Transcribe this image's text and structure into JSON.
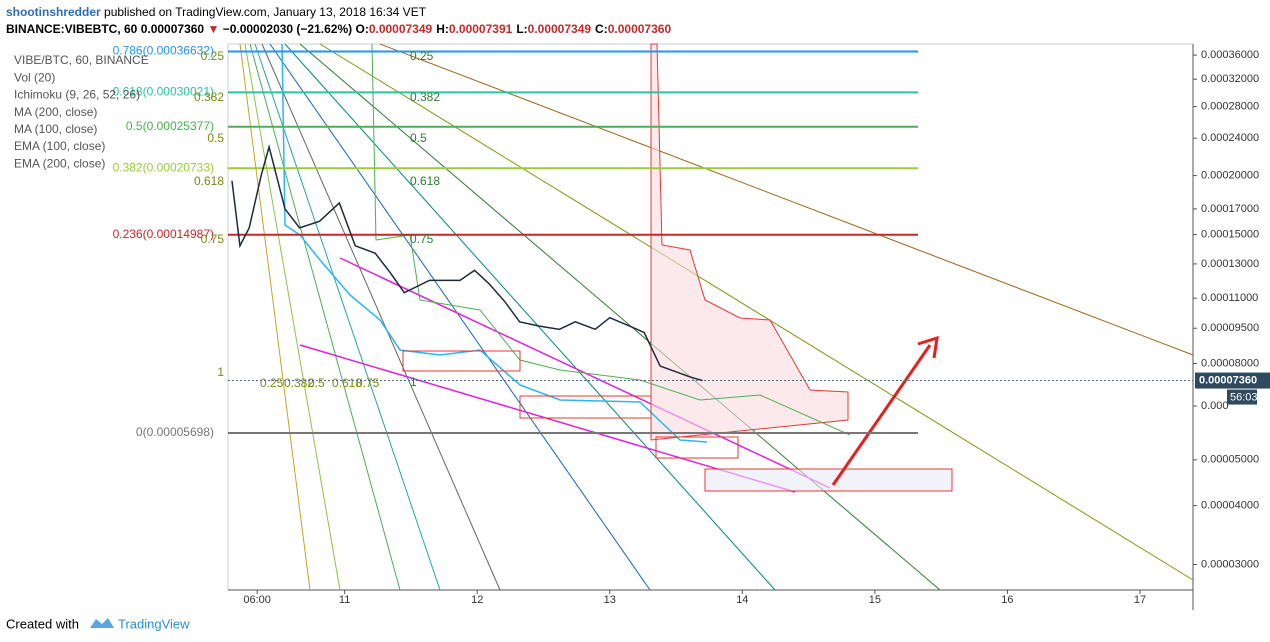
{
  "header": {
    "author": "shootinshredder",
    "published": "published on TradingView.com, January 13, 2018 16:34 VET",
    "symbol": "BINANCE:VIBEBTC, 60",
    "arrow": "▼",
    "change": "−0.00002030 (−21.62%)",
    "ohlc": [
      {
        "key": "O:",
        "value": "0.00007349"
      },
      {
        "key": "H:",
        "value": "0.00007391"
      },
      {
        "key": "L:",
        "value": "0.00007349"
      },
      {
        "key": "C:",
        "value": "0.00007360"
      }
    ]
  },
  "legend": [
    "VIBE/BTC, 60, BINANCE",
    "Vol (20)",
    "Ichimoku (9, 26, 52, 26)",
    "MA (200, close)",
    "MA (100, close)",
    "EMA (100, close)",
    "EMA (200, close)"
  ],
  "chart_data": {
    "type": "line",
    "log_scale": true,
    "color": "#1e2a3a",
    "x": [
      10.15,
      10.21,
      10.28,
      10.37,
      10.43,
      10.55,
      10.66,
      10.81,
      10.96,
      11.08,
      11.23,
      11.34,
      11.45,
      11.64,
      11.87,
      11.98,
      12.09,
      12.21,
      12.32,
      12.47,
      12.62,
      12.74,
      12.89,
      13.0,
      13.15,
      13.26,
      13.38,
      13.49,
      13.6,
      13.7
    ],
    "values": [
      0.000195,
      0.000142,
      0.000155,
      0.0002,
      0.00023,
      0.00017,
      0.000155,
      0.00016,
      0.000175,
      0.000142,
      0.000137,
      0.000125,
      0.000113,
      0.00012,
      0.00012,
      0.000126,
      0.000118,
      0.000108,
      9.8e-05,
      9.6e-05,
      9.45e-05,
      9.8e-05,
      9.45e-05,
      0.0001,
      9.6e-05,
      9.3e-05,
      7.9e-05,
      7.7e-05,
      7.5e-05,
      7.36e-05
    ],
    "xlim": [
      10.12,
      17.4
    ],
    "xticks": [
      {
        "value": 10.34,
        "label": "06:00"
      },
      11,
      12,
      13,
      14,
      15,
      16,
      17
    ],
    "ylim": [
      2.65e-05,
      0.00038
    ],
    "yticks": [
      {
        "value": 0.00036,
        "label": "0.00036000"
      },
      {
        "value": 0.00032,
        "label": "0.00032000"
      },
      {
        "value": 0.00028,
        "label": "0.00028000"
      },
      {
        "value": 0.00024,
        "label": "0.00024000"
      },
      {
        "value": 0.0002,
        "label": "0.00020000"
      },
      {
        "value": 0.00017,
        "label": "0.00017000"
      },
      {
        "value": 0.00015,
        "label": "0.00015000"
      },
      {
        "value": 0.00013,
        "label": "0.00013000"
      },
      {
        "value": 0.00011,
        "label": "0.00011000"
      },
      {
        "value": 9.5e-05,
        "label": "0.00009500"
      },
      {
        "value": 8e-05,
        "label": "0.00008000"
      },
      {
        "value": 6.5e-05,
        "label": "0.000"
      },
      {
        "value": 5e-05,
        "label": "0.00005000"
      },
      {
        "value": 4e-05,
        "label": "0.00004000"
      },
      {
        "value": 3e-05,
        "label": "0.00003000"
      }
    ],
    "last_price": {
      "value": 7.36e-05,
      "label": "0.00007360"
    },
    "countdown": "56:03",
    "fib_levels": [
      {
        "label": "0.786(0.00036632)",
        "value": 0.00036632,
        "color": "#2196f3"
      },
      {
        "label": "0.618(0.00030021)",
        "value": 0.00030021,
        "color": "#26c6a0"
      },
      {
        "label": "0.5(0.00025377)",
        "value": 0.00025377,
        "color": "#4caf50"
      },
      {
        "label": "0.382(0.00020733)",
        "value": 0.00020733,
        "color": "#9ccc32"
      },
      {
        "label": "0.236(0.00014987)",
        "value": 0.00014987,
        "color": "#c62828"
      },
      {
        "label": "0(0.00005698)",
        "value": 5.698e-05,
        "color": "#777777"
      }
    ],
    "fan_labels": [
      "0.25",
      "0.382",
      "0.5",
      "0.618",
      "0.75",
      "1"
    ]
  },
  "footer": {
    "created": "Created with",
    "brand": "TradingView"
  }
}
